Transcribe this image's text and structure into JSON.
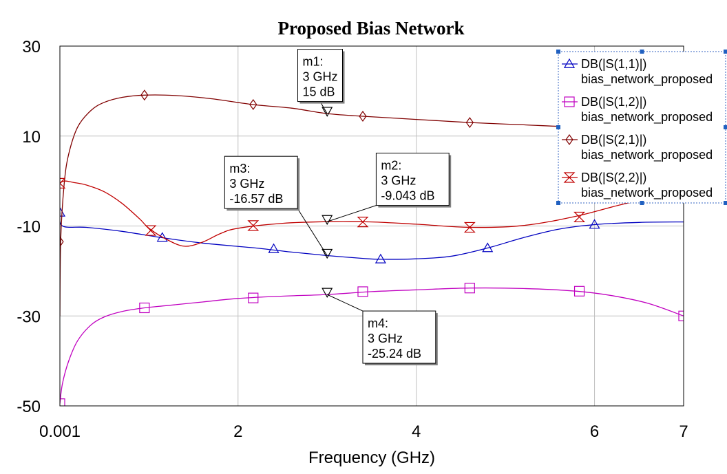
{
  "chart_data": {
    "type": "line",
    "title": "Proposed Bias Network",
    "xlabel": "Frequency (GHz)",
    "ylabel": "",
    "xlim": [
      0.001,
      7
    ],
    "ylim": [
      -50,
      30
    ],
    "x_ticks": [
      {
        "value": 0.001,
        "label": "0.001"
      },
      {
        "value": 2,
        "label": "2"
      },
      {
        "value": 4,
        "label": "4"
      },
      {
        "value": 6,
        "label": "6"
      },
      {
        "value": 7,
        "label": "7"
      }
    ],
    "y_ticks": [
      {
        "value": 30,
        "label": "30"
      },
      {
        "value": 10,
        "label": "10"
      },
      {
        "value": -10,
        "label": "-10"
      },
      {
        "value": -30,
        "label": "-30"
      },
      {
        "value": -50,
        "label": "-50"
      }
    ],
    "grid": true,
    "legend_position": "top-right",
    "series": [
      {
        "name": "DB(|S(1,1)|)",
        "name2": "bias_network_proposed",
        "color": "#0000c0",
        "marker": "triangle",
        "x": [
          0.001,
          0.03,
          0.3,
          0.7,
          1.15,
          1.6,
          2.2,
          2.6,
          3.0,
          3.4,
          3.6,
          4.0,
          4.4,
          4.8,
          5.2,
          5.6,
          6.0,
          6.5,
          7.0
        ],
        "y": [
          -7,
          -10.0,
          -10.3,
          -11.2,
          -12.6,
          -13.8,
          -14.9,
          -15.8,
          -16.57,
          -17.2,
          -17.4,
          -17.3,
          -16.7,
          -14.9,
          -12.6,
          -10.7,
          -9.7,
          -9.2,
          -9.1
        ],
        "markers_x": [
          0.001,
          1.15,
          2.4,
          3.6,
          4.8,
          6.0
        ],
        "markers_y": [
          -7,
          -12.6,
          -15.1,
          -17.4,
          -14.9,
          -9.7
        ]
      },
      {
        "name": "DB(|S(1,2)|)",
        "name2": "bias_network_proposed",
        "color": "#c000c0",
        "marker": "square",
        "x": [
          0.001,
          0.03,
          0.1,
          0.2,
          0.35,
          0.5,
          0.7,
          0.95,
          1.2,
          1.6,
          2.0,
          2.5,
          3.0,
          3.5,
          4.0,
          4.6,
          5.2,
          5.8,
          6.2,
          6.6,
          7.0
        ],
        "y": [
          -49.5,
          -45,
          -40,
          -35.5,
          -32,
          -30.2,
          -29,
          -28.2,
          -27.7,
          -26.9,
          -26.1,
          -25.6,
          -25.24,
          -24.6,
          -24.2,
          -23.8,
          -23.9,
          -24.5,
          -25.5,
          -27.2,
          -30
        ],
        "markers_x": [
          0.001,
          0.95,
          2.17,
          3.4,
          4.6,
          5.83,
          7.0
        ],
        "markers_y": [
          -49.5,
          -28.2,
          -26.0,
          -24.6,
          -23.8,
          -24.5,
          -30
        ]
      },
      {
        "name": "DB(|S(2,1)|)",
        "name2": "bias_network_proposed",
        "color": "#800000",
        "marker": "diamond",
        "x": [
          0.001,
          0.01,
          0.05,
          0.1,
          0.2,
          0.35,
          0.5,
          0.7,
          0.95,
          1.3,
          1.7,
          2.17,
          2.6,
          3.0,
          3.4,
          4.0,
          4.6,
          5.2,
          5.8,
          6.4,
          7.0
        ],
        "y": [
          -30,
          -13,
          -0.5,
          6,
          12,
          15.7,
          17.5,
          18.6,
          19.1,
          19.0,
          18.3,
          17.0,
          16.2,
          15,
          14.4,
          13.7,
          13.0,
          12.5,
          12.0,
          11.8,
          12.2
        ],
        "markers_x": [
          0.001,
          0.95,
          2.17,
          3.4,
          4.6,
          5.83
        ],
        "markers_y": [
          -13.5,
          19.1,
          17.0,
          14.4,
          13.0,
          11.9
        ]
      },
      {
        "name": "DB(|S(2,2)|)",
        "name2": "bias_network_proposed",
        "color": "#c00000",
        "marker": "hourglass",
        "x": [
          0.001,
          0.05,
          0.15,
          0.3,
          0.5,
          0.7,
          0.9,
          1.0,
          1.2,
          1.4,
          1.6,
          1.8,
          2.0,
          2.5,
          3.0,
          3.5,
          4.0,
          4.6,
          5.2,
          5.8,
          6.4,
          7.0
        ],
        "y": [
          -0.5,
          0,
          -0.3,
          -0.9,
          -2.4,
          -5,
          -8.5,
          -10.5,
          -13.0,
          -14.5,
          -13.6,
          -11.7,
          -10.5,
          -9.4,
          -9.043,
          -9.1,
          -9.6,
          -10.3,
          -9.9,
          -7.8,
          -4.8,
          -3.0
        ],
        "markers_x": [
          0.001,
          1.02,
          2.17,
          3.4,
          4.6,
          5.83
        ],
        "markers_y": [
          -0.5,
          -11.0,
          -9.9,
          -9.1,
          -10.3,
          -8.0
        ]
      }
    ],
    "markers": [
      {
        "id": "m1",
        "label_name": "m1:",
        "label_freq": "3 GHz",
        "label_value": "15 dB",
        "x": 3,
        "y": 15,
        "box_anchor": [
          2.67,
          29.3
        ]
      },
      {
        "id": "m2",
        "label_name": "m2:",
        "label_freq": "3 GHz",
        "label_value": "-9.043 dB",
        "x": 3,
        "y": -9.043,
        "box_anchor": [
          3.55,
          6.2
        ]
      },
      {
        "id": "m3",
        "label_name": "m3:",
        "label_freq": "3 GHz",
        "label_value": "-16.57 dB",
        "x": 3,
        "y": -16.57,
        "box_anchor": [
          1.85,
          5.5
        ]
      },
      {
        "id": "m4",
        "label_name": "m4:",
        "label_freq": "3 GHz",
        "label_value": "-25.24 dB",
        "x": 3,
        "y": -25.24,
        "box_anchor": [
          3.4,
          -28.9
        ]
      }
    ]
  }
}
